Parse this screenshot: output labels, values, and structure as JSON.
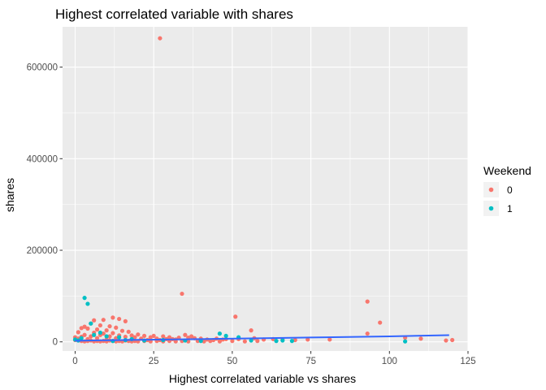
{
  "chart_data": {
    "type": "scatter",
    "title": "Highest correlated variable with shares",
    "xlabel": "Highest correlated variable vs shares",
    "ylabel": "shares",
    "xlim": [
      -4,
      125
    ],
    "ylim": [
      -20000,
      688000
    ],
    "x_ticks": [
      0,
      25,
      50,
      75,
      100,
      125
    ],
    "y_ticks": [
      0,
      200000,
      400000,
      600000
    ],
    "x_tick_labels": [
      "0",
      "25",
      "50",
      "75",
      "100",
      "125"
    ],
    "y_tick_labels": [
      "0",
      "200000",
      "400000",
      "600000"
    ],
    "grid": true,
    "legend": {
      "title": "Weekend",
      "position": "right",
      "entries": [
        {
          "label": "0",
          "color": "#F8766D"
        },
        {
          "label": "1",
          "color": "#00BFC4"
        }
      ]
    },
    "series": [
      {
        "name": "0",
        "color": "#F8766D",
        "points": [
          [
            27,
            663000
          ],
          [
            34,
            105000
          ],
          [
            93,
            88000
          ],
          [
            97,
            42000
          ],
          [
            51,
            55000
          ],
          [
            12,
            53000
          ],
          [
            14,
            50000
          ],
          [
            9,
            48000
          ],
          [
            6,
            47000
          ],
          [
            16,
            45000
          ],
          [
            5,
            40000
          ],
          [
            8,
            36000
          ],
          [
            11,
            34000
          ],
          [
            3,
            33000
          ],
          [
            13,
            31000
          ],
          [
            2,
            30000
          ],
          [
            4,
            29000
          ],
          [
            7,
            27000
          ],
          [
            10,
            25000
          ],
          [
            15,
            24000
          ],
          [
            17,
            22000
          ],
          [
            1,
            21000
          ],
          [
            6,
            20000
          ],
          [
            12,
            19000
          ],
          [
            9,
            18000
          ],
          [
            20,
            16000
          ],
          [
            3,
            15000
          ],
          [
            8,
            15000
          ],
          [
            14,
            14000
          ],
          [
            18,
            14000
          ],
          [
            22,
            13000
          ],
          [
            25,
            13000
          ],
          [
            28,
            12000
          ],
          [
            5,
            12000
          ],
          [
            11,
            12000
          ],
          [
            0,
            10000
          ],
          [
            2,
            11000
          ],
          [
            16,
            11000
          ],
          [
            19,
            10000
          ],
          [
            24,
            10000
          ],
          [
            30,
            10000
          ],
          [
            33,
            9000
          ],
          [
            36,
            9000
          ],
          [
            38,
            8000
          ],
          [
            40,
            7000
          ],
          [
            45,
            7000
          ],
          [
            48,
            6000
          ],
          [
            52,
            6000
          ],
          [
            56,
            25000
          ],
          [
            57,
            8000
          ],
          [
            60,
            5000
          ],
          [
            63,
            6000
          ],
          [
            66,
            5000
          ],
          [
            70,
            4000
          ],
          [
            74,
            5000
          ],
          [
            81,
            5000
          ],
          [
            93,
            18000
          ],
          [
            105,
            9000
          ],
          [
            110,
            7000
          ],
          [
            118,
            3000
          ],
          [
            120,
            4000
          ],
          [
            13,
            8000
          ],
          [
            7,
            8000
          ],
          [
            21,
            7000
          ],
          [
            26,
            7000
          ],
          [
            29,
            6000
          ],
          [
            31,
            6000
          ],
          [
            35,
            15000
          ],
          [
            37,
            12000
          ],
          [
            42,
            5000
          ],
          [
            44,
            4000
          ],
          [
            47,
            5000
          ],
          [
            0,
            4000
          ],
          [
            1,
            3000
          ],
          [
            2,
            2000
          ],
          [
            3,
            1000
          ],
          [
            4,
            2000
          ],
          [
            5,
            3000
          ],
          [
            6,
            1000
          ],
          [
            7,
            2000
          ],
          [
            8,
            1000
          ],
          [
            9,
            2000
          ],
          [
            10,
            1000
          ],
          [
            11,
            3000
          ],
          [
            12,
            2000
          ],
          [
            13,
            1000
          ],
          [
            14,
            2000
          ],
          [
            15,
            1000
          ],
          [
            16,
            3000
          ],
          [
            17,
            2000
          ],
          [
            18,
            1000
          ],
          [
            19,
            2000
          ],
          [
            20,
            1000
          ],
          [
            22,
            2000
          ],
          [
            24,
            1000
          ],
          [
            26,
            2000
          ],
          [
            28,
            1000
          ],
          [
            30,
            2000
          ],
          [
            32,
            1000
          ],
          [
            34,
            2000
          ],
          [
            36,
            1000
          ],
          [
            39,
            2000
          ],
          [
            41,
            1000
          ],
          [
            43,
            2000
          ],
          [
            46,
            1000
          ],
          [
            50,
            2000
          ],
          [
            54,
            1000
          ],
          [
            58,
            2000
          ],
          [
            10,
            5000
          ],
          [
            4,
            6000
          ],
          [
            18,
            5000
          ],
          [
            23,
            4000
          ],
          [
            27,
            4000
          ],
          [
            32,
            5000
          ],
          [
            1,
            7000
          ]
        ]
      },
      {
        "name": "1",
        "color": "#00BFC4",
        "points": [
          [
            3,
            96000
          ],
          [
            4,
            83000
          ],
          [
            5,
            40000
          ],
          [
            8,
            20000
          ],
          [
            6,
            15000
          ],
          [
            2,
            8000
          ],
          [
            10,
            12000
          ],
          [
            14,
            10000
          ],
          [
            18,
            6000
          ],
          [
            46,
            18000
          ],
          [
            48,
            13000
          ],
          [
            52,
            10000
          ],
          [
            66,
            3000
          ],
          [
            69,
            2000
          ],
          [
            28,
            4000
          ],
          [
            35,
            3000
          ],
          [
            105,
            1000
          ],
          [
            0,
            5000
          ],
          [
            1,
            3000
          ],
          [
            12,
            2000
          ],
          [
            16,
            4000
          ],
          [
            22,
            3000
          ],
          [
            40,
            2000
          ],
          [
            56,
            3000
          ],
          [
            64,
            2000
          ]
        ]
      }
    ],
    "trend_line": {
      "color": "#3366FF",
      "points": [
        [
          0,
          2500
        ],
        [
          20,
          4500
        ],
        [
          40,
          6000
        ],
        [
          60,
          8000
        ],
        [
          80,
          10000
        ],
        [
          100,
          12000
        ],
        [
          119,
          14500
        ]
      ]
    }
  }
}
